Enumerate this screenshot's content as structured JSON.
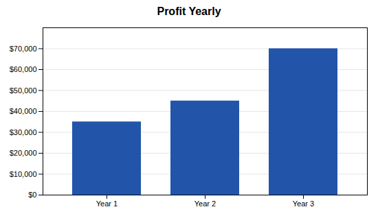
{
  "chart_data": {
    "type": "bar",
    "title": "Profit Yearly",
    "categories": [
      "Year 1",
      "Year 2",
      "Year 3"
    ],
    "values": [
      35000,
      45000,
      70000
    ],
    "color": "#2255AA",
    "ylim": [
      0,
      80000
    ],
    "yticks": [
      {
        "value": 0,
        "label": "$0"
      },
      {
        "value": 10000,
        "label": "$10,000"
      },
      {
        "value": 20000,
        "label": "$20,000"
      },
      {
        "value": 30000,
        "label": "$30,000"
      },
      {
        "value": 40000,
        "label": "$40,000"
      },
      {
        "value": 50000,
        "label": "$50,000"
      },
      {
        "value": 60000,
        "label": "$60,000"
      },
      {
        "value": 70000,
        "label": "$70,000"
      }
    ],
    "grid": true
  }
}
